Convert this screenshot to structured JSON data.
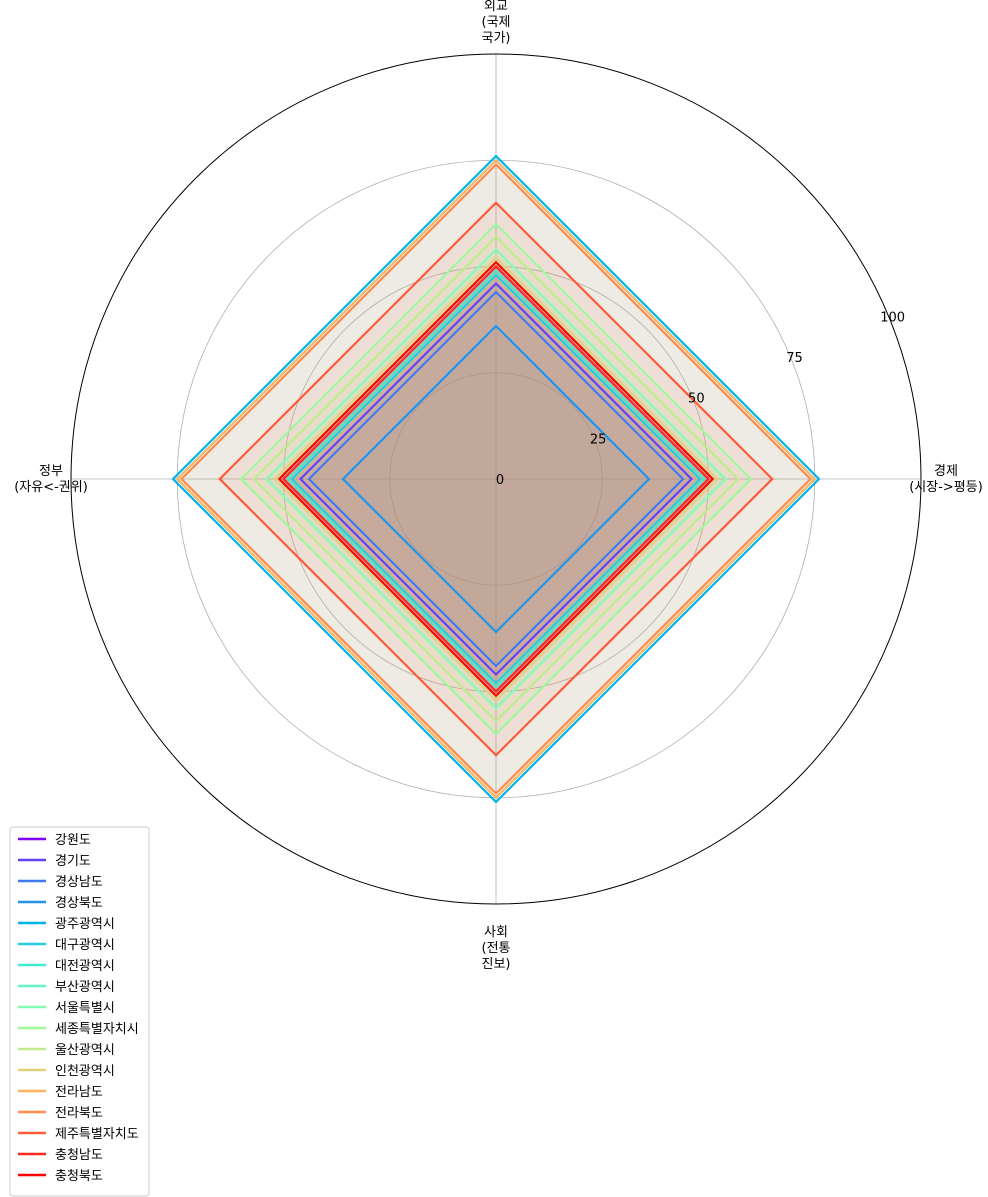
{
  "chart_data": {
    "type": "radar",
    "axes": [
      {
        "lines": [
          "경제",
          "(시장->평등)"
        ]
      },
      {
        "lines": [
          "외교",
          "(국제",
          "국가)"
        ]
      },
      {
        "lines": [
          "정부",
          "(자유<-권위)"
        ]
      },
      {
        "lines": [
          "사회",
          "(전통",
          "진보)"
        ]
      }
    ],
    "rlim": [
      0,
      100
    ],
    "rticks": [
      0,
      25,
      50,
      75,
      100
    ],
    "grid": true,
    "legend_position": "lower-left",
    "series": [
      {
        "name": "강원도",
        "color": "#8000ff",
        "values": [
          50,
          50,
          50,
          50
        ]
      },
      {
        "name": "경기도",
        "color": "#6042fb",
        "values": [
          46,
          46,
          46,
          46
        ]
      },
      {
        "name": "경상남도",
        "color": "#4079f5",
        "values": [
          44,
          44,
          44,
          44
        ]
      },
      {
        "name": "경상북도",
        "color": "#2093ee",
        "values": [
          36,
          36,
          36,
          36
        ]
      },
      {
        "name": "광주광역시",
        "color": "#00b5eb",
        "values": [
          76,
          76,
          76,
          76
        ]
      },
      {
        "name": "대구광역시",
        "color": "#20d0e0",
        "values": [
          48,
          48,
          48,
          48
        ]
      },
      {
        "name": "대전광역시",
        "color": "#40ebd1",
        "values": [
          49,
          49,
          49,
          49
        ]
      },
      {
        "name": "부산광역시",
        "color": "#60f8c0",
        "values": [
          51,
          51,
          51,
          51
        ]
      },
      {
        "name": "서울특별시",
        "color": "#80ffb4",
        "values": [
          54,
          54,
          54,
          54
        ]
      },
      {
        "name": "세종특별자치시",
        "color": "#a0f89b",
        "values": [
          60,
          60,
          60,
          60
        ]
      },
      {
        "name": "울산광역시",
        "color": "#c0eb8d",
        "values": [
          57,
          57,
          57,
          57
        ]
      },
      {
        "name": "인천광역시",
        "color": "#e0d07a",
        "values": [
          52,
          52,
          52,
          52
        ]
      },
      {
        "name": "전라남도",
        "color": "#ffb360",
        "values": [
          75,
          75,
          75,
          75
        ]
      },
      {
        "name": "전라북도",
        "color": "#ff8b4a",
        "values": [
          74,
          74,
          74,
          74
        ]
      },
      {
        "name": "제주특별자치도",
        "color": "#ff5a35",
        "values": [
          65,
          65,
          65,
          65
        ]
      },
      {
        "name": "충청남도",
        "color": "#ff2d1f",
        "values": [
          50,
          50,
          50,
          50
        ]
      },
      {
        "name": "충청북도",
        "color": "#ff0000",
        "values": [
          51,
          51,
          51,
          51
        ]
      }
    ]
  }
}
